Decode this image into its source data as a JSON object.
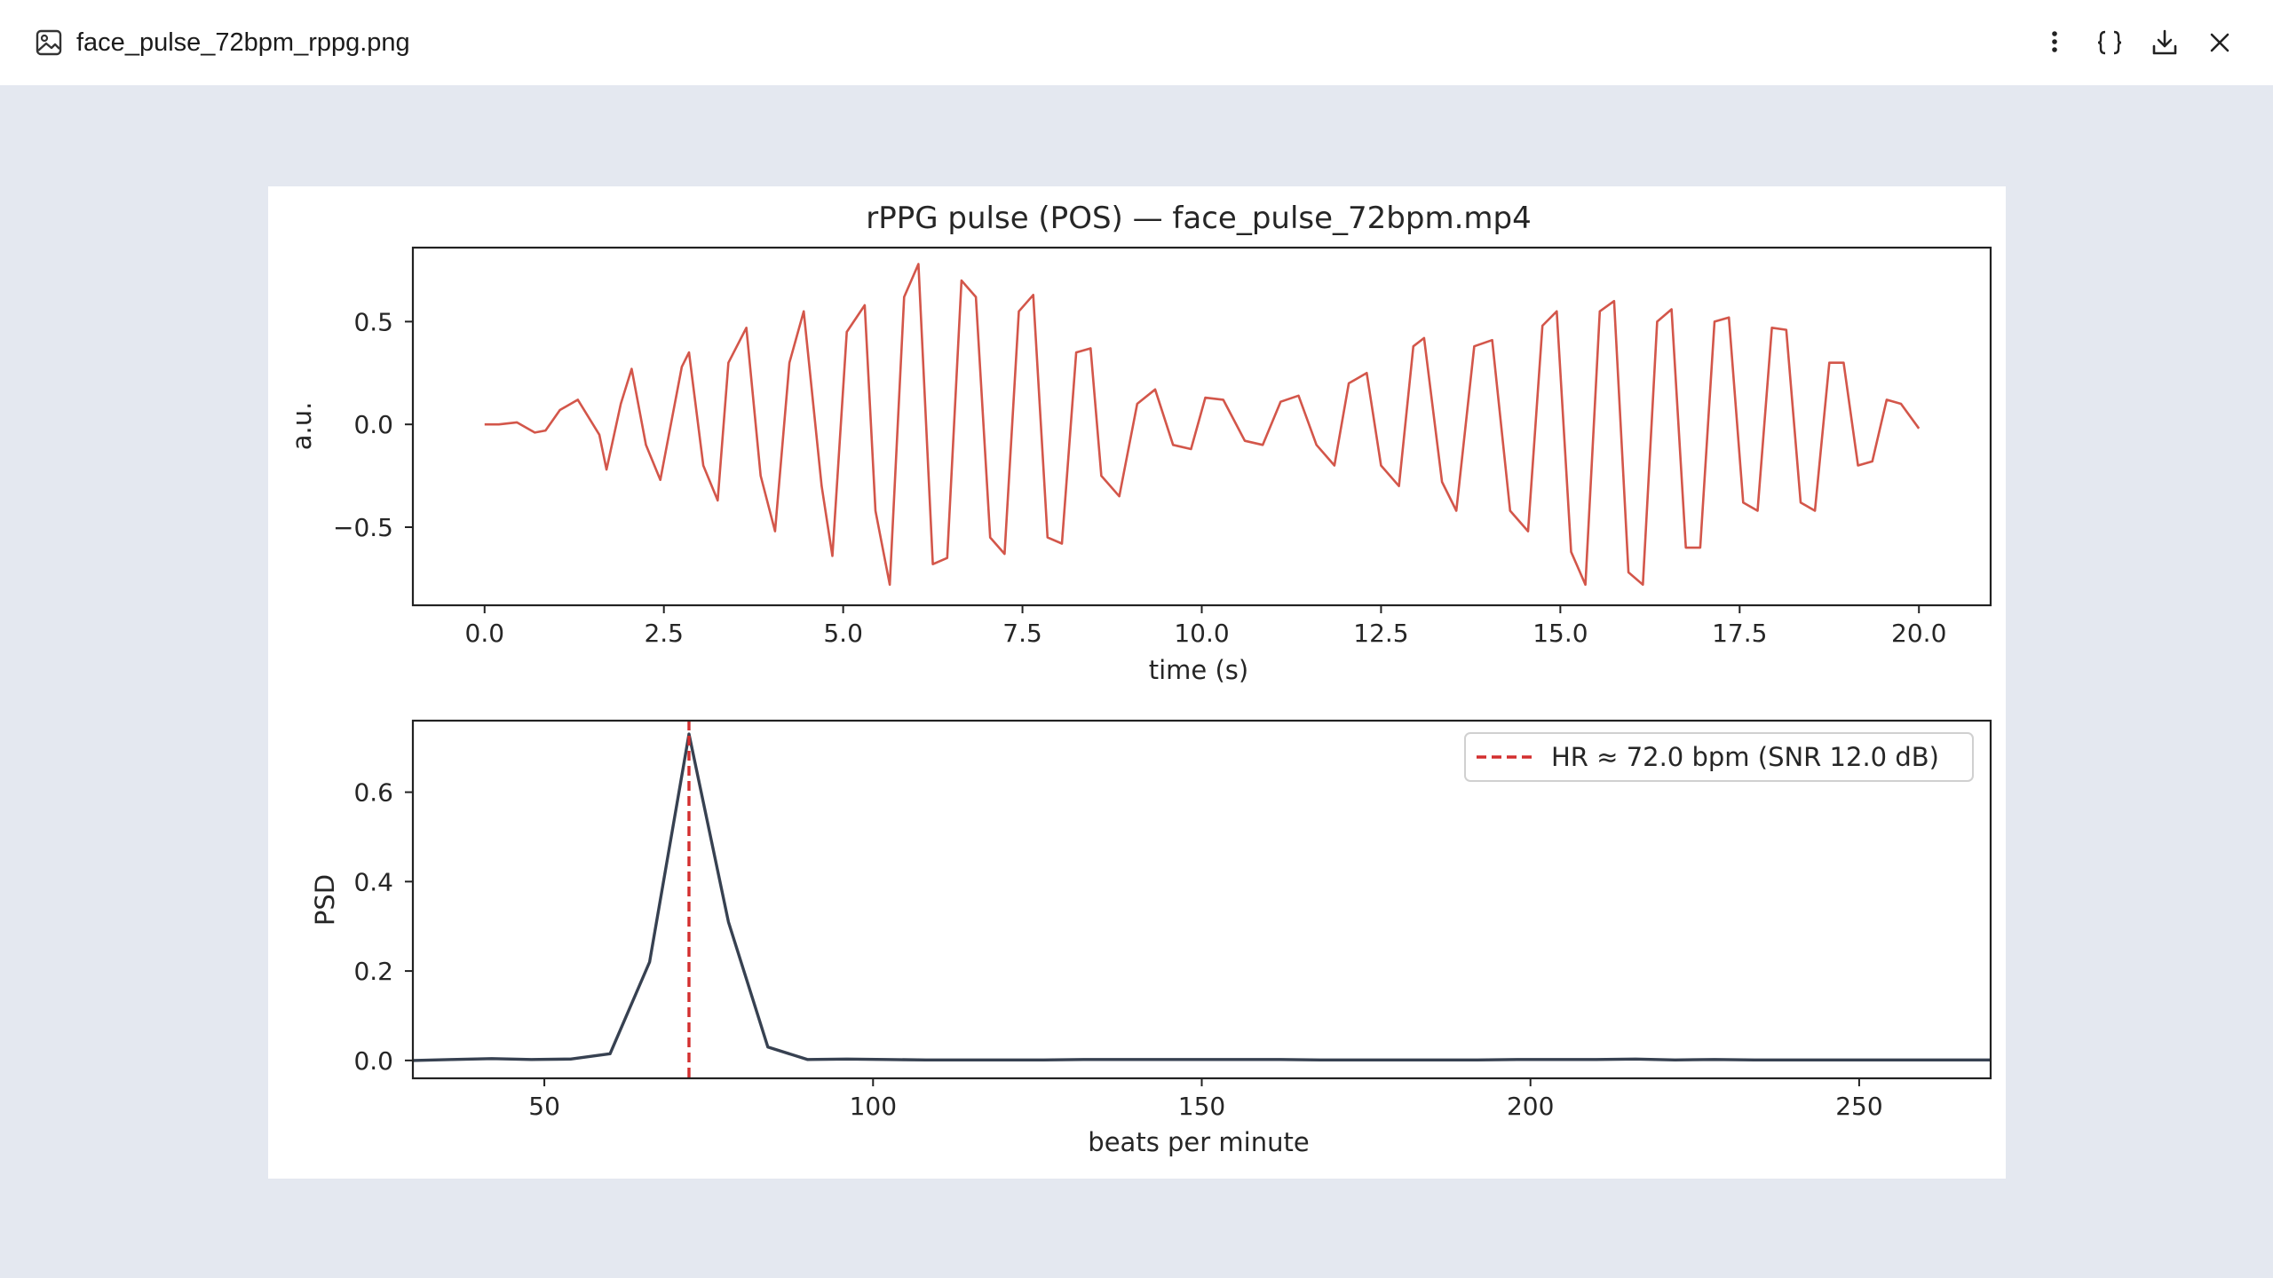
{
  "window": {
    "file_name": "face_pulse_72bpm_rppg.png",
    "actions": [
      "more-vert-icon",
      "json-braces-icon",
      "download-icon",
      "close-icon"
    ]
  },
  "colors": {
    "pulse": "#d3564a",
    "psd": "#374151",
    "hr_line": "#d32f2f",
    "viewer_bg": "#e4e8f0"
  },
  "chart_data": [
    {
      "type": "line",
      "title": "rPPG pulse (POS) — face_pulse_72bpm.mp4",
      "xlabel": "time (s)",
      "ylabel": "a.u.",
      "xlim": [
        -1,
        21
      ],
      "ylim": [
        -0.88,
        0.86
      ],
      "xticks": [
        0.0,
        2.5,
        5.0,
        7.5,
        10.0,
        12.5,
        15.0,
        17.5,
        20.0
      ],
      "xtick_labels": [
        "0.0",
        "2.5",
        "5.0",
        "7.5",
        "10.0",
        "12.5",
        "15.0",
        "17.5",
        "20.0"
      ],
      "yticks": [
        -0.5,
        0.0,
        0.5
      ],
      "ytick_labels": [
        "−0.5",
        "0.0",
        "0.5"
      ],
      "series": [
        {
          "x": [
            0.0,
            0.2,
            0.45,
            0.7,
            0.85,
            1.05,
            1.3,
            1.6,
            1.7,
            1.9,
            2.05,
            2.25,
            2.45,
            2.75,
            2.85,
            3.05,
            3.25,
            3.4,
            3.65,
            3.85,
            4.05,
            4.25,
            4.45,
            4.7,
            4.85,
            5.05,
            5.3,
            5.45,
            5.65,
            5.85,
            6.05,
            6.25,
            6.45,
            6.65,
            6.85,
            7.05,
            7.25,
            7.45,
            7.65,
            7.85,
            8.05,
            8.25,
            8.45,
            8.6,
            8.85,
            9.1,
            9.35,
            9.6,
            9.85,
            10.05,
            10.3,
            10.6,
            10.85,
            11.1,
            11.35,
            11.6,
            11.85,
            12.05,
            12.3,
            12.5,
            12.75,
            12.95,
            13.1,
            13.35,
            13.55,
            13.8,
            14.05,
            14.3,
            14.55,
            14.75,
            14.95,
            15.15,
            15.35,
            15.55,
            15.75,
            15.95,
            16.15,
            16.35,
            16.55,
            16.75,
            16.95,
            17.15,
            17.35,
            17.55,
            17.75,
            17.95,
            18.15,
            18.35,
            18.55,
            18.75,
            18.95,
            19.15,
            19.35,
            19.55,
            19.75,
            20.0
          ],
          "values": [
            0.0,
            0.0,
            0.01,
            -0.04,
            -0.03,
            0.07,
            0.12,
            -0.05,
            -0.22,
            0.1,
            0.27,
            -0.1,
            -0.27,
            0.28,
            0.35,
            -0.2,
            -0.37,
            0.3,
            0.47,
            -0.25,
            -0.52,
            0.3,
            0.55,
            -0.3,
            -0.64,
            0.45,
            0.58,
            -0.42,
            -0.78,
            0.62,
            0.78,
            -0.68,
            -0.65,
            0.7,
            0.62,
            -0.55,
            -0.63,
            0.55,
            0.63,
            -0.55,
            -0.58,
            0.35,
            0.37,
            -0.25,
            -0.35,
            0.1,
            0.17,
            -0.1,
            -0.12,
            0.13,
            0.12,
            -0.08,
            -0.1,
            0.11,
            0.14,
            -0.1,
            -0.2,
            0.2,
            0.25,
            -0.2,
            -0.3,
            0.38,
            0.42,
            -0.28,
            -0.42,
            0.38,
            0.41,
            -0.42,
            -0.52,
            0.48,
            0.55,
            -0.62,
            -0.78,
            0.55,
            0.6,
            -0.72,
            -0.78,
            0.5,
            0.56,
            -0.6,
            -0.6,
            0.5,
            0.52,
            -0.38,
            -0.42,
            0.47,
            0.46,
            -0.38,
            -0.42,
            0.3,
            0.3,
            -0.2,
            -0.18,
            0.12,
            0.1,
            -0.02
          ]
        }
      ]
    },
    {
      "type": "line",
      "xlabel": "beats per minute",
      "ylabel": "PSD",
      "xlim": [
        30,
        270
      ],
      "ylim": [
        -0.04,
        0.76
      ],
      "xticks": [
        50,
        100,
        150,
        200,
        250
      ],
      "xtick_labels": [
        "50",
        "100",
        "150",
        "200",
        "250"
      ],
      "yticks": [
        0.0,
        0.2,
        0.4,
        0.6
      ],
      "ytick_labels": [
        "0.0",
        "0.2",
        "0.4",
        "0.6"
      ],
      "series": [
        {
          "x": [
            30,
            36,
            42,
            48,
            54,
            60,
            66,
            72,
            78,
            84,
            90,
            96,
            102,
            108,
            114,
            120,
            126,
            132,
            138,
            144,
            150,
            156,
            162,
            168,
            174,
            180,
            186,
            192,
            198,
            204,
            210,
            216,
            222,
            228,
            234,
            240,
            246,
            252,
            258,
            264,
            270
          ],
          "values": [
            0.0,
            0.002,
            0.004,
            0.002,
            0.003,
            0.015,
            0.22,
            0.73,
            0.31,
            0.03,
            0.002,
            0.003,
            0.002,
            0.001,
            0.001,
            0.001,
            0.001,
            0.002,
            0.002,
            0.002,
            0.002,
            0.002,
            0.002,
            0.001,
            0.001,
            0.001,
            0.001,
            0.001,
            0.002,
            0.002,
            0.002,
            0.003,
            0.001,
            0.002,
            0.001,
            0.001,
            0.001,
            0.001,
            0.001,
            0.001,
            0.001
          ]
        }
      ],
      "hr_bpm": 72.0,
      "legend": {
        "label": "HR ≈ 72.0 bpm (SNR 12.0 dB)",
        "placement": "upper-right"
      }
    }
  ]
}
